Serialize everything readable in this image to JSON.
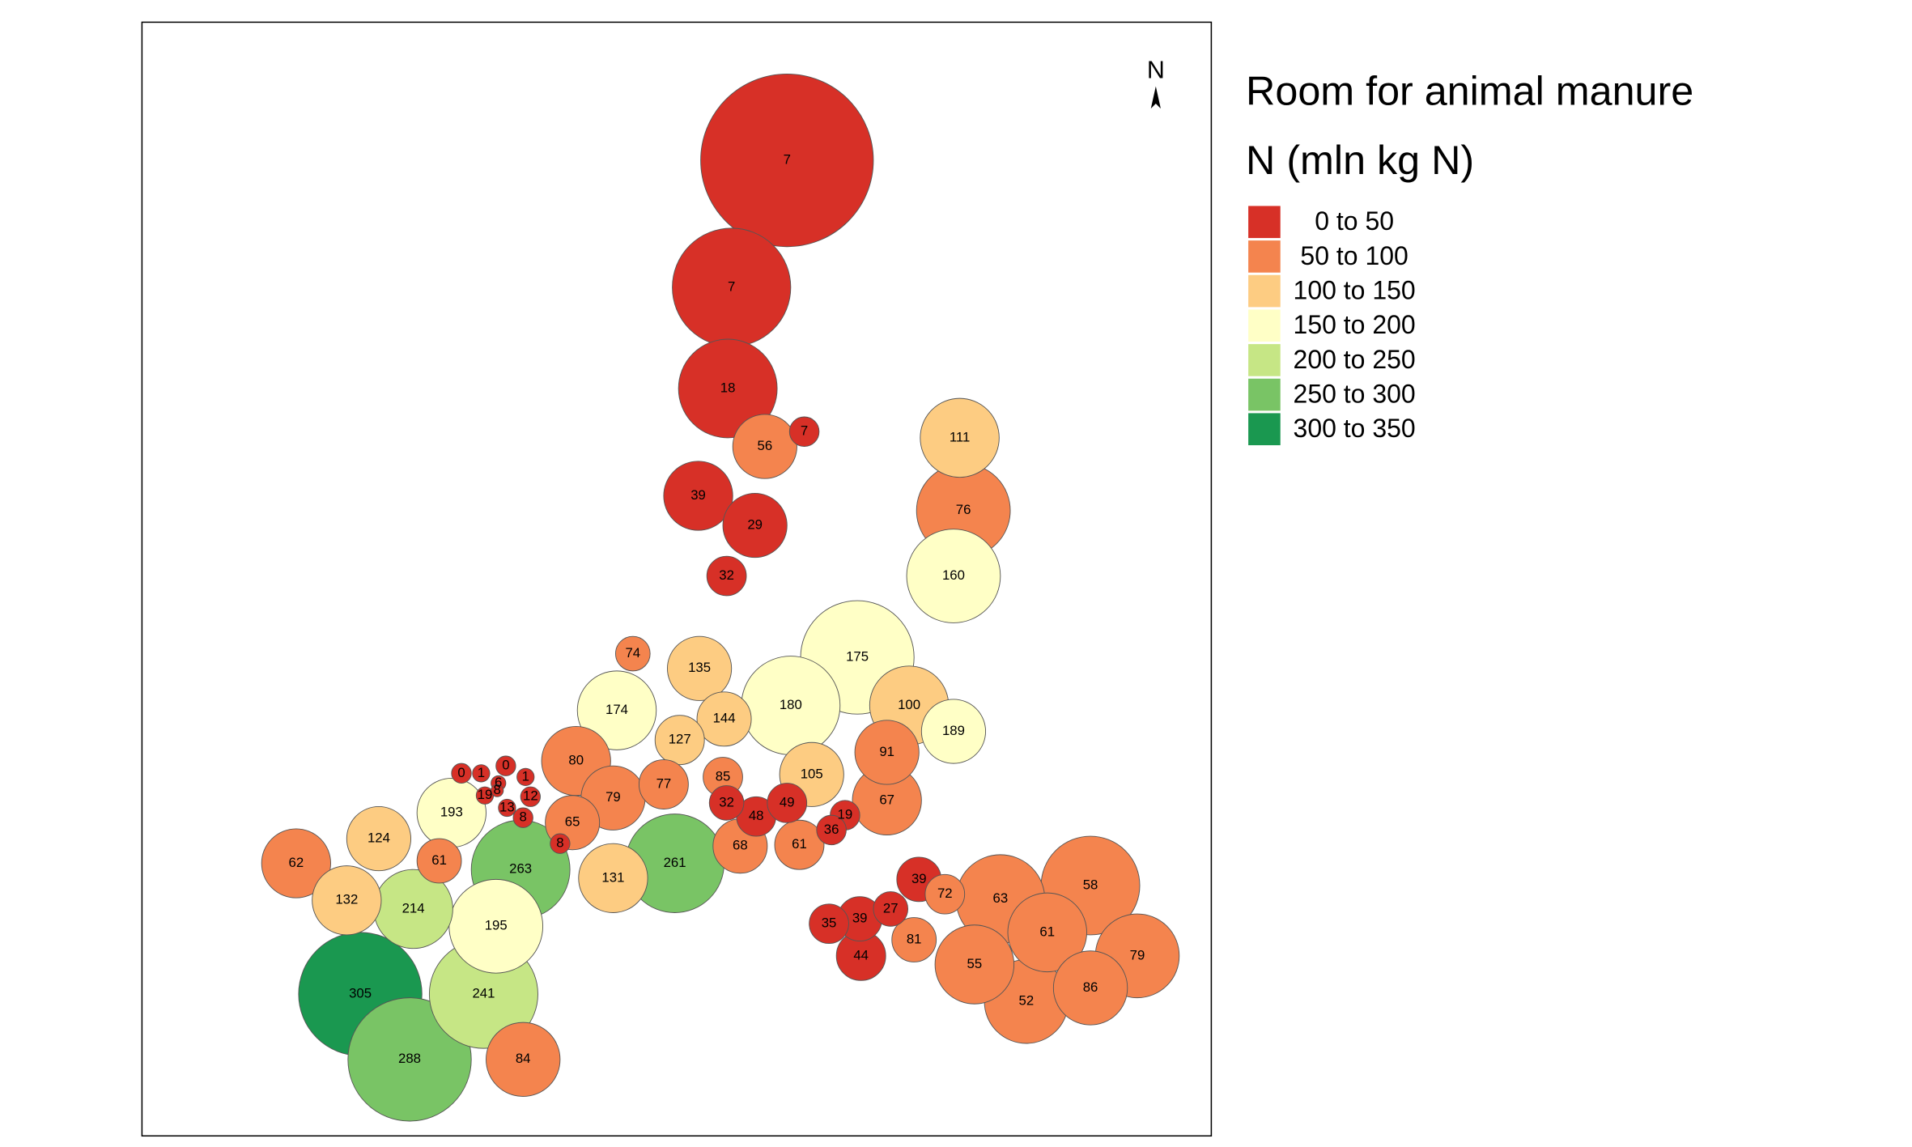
{
  "map": {
    "title_lines": [
      "Room for animal manure",
      "N (mln kg N)"
    ],
    "north_label": "N",
    "legend": {
      "classes": [
        {
          "label": "0 to  50",
          "min": 0,
          "max": 50,
          "color": "#d73027"
        },
        {
          "label": "50 to 100",
          "min": 50,
          "max": 100,
          "color": "#f4844e"
        },
        {
          "label": "100 to 150",
          "min": 100,
          "max": 150,
          "color": "#fdcc82"
        },
        {
          "label": "150 to 200",
          "min": 150,
          "max": 200,
          "color": "#ffffc6"
        },
        {
          "label": "200 to 250",
          "min": 200,
          "max": 250,
          "color": "#c6e685"
        },
        {
          "label": "250 to 300",
          "min": 250,
          "max": 300,
          "color": "#79c465"
        },
        {
          "label": "300 to 350",
          "min": 300,
          "max": 350,
          "color": "#1a9850"
        }
      ]
    },
    "regions": {
      "values": [
        7,
        7,
        18,
        56,
        7,
        39,
        29,
        32,
        111,
        76,
        160,
        175,
        180,
        100,
        189,
        91,
        105,
        67,
        74,
        135,
        174,
        144,
        127,
        80,
        79,
        77,
        85,
        65,
        8,
        131,
        261,
        0,
        1,
        0,
        1,
        6,
        19,
        8,
        12,
        13,
        8,
        32,
        48,
        49,
        19,
        68,
        61,
        36,
        193,
        124,
        61,
        263,
        62,
        132,
        214,
        195,
        305,
        241,
        288,
        84,
        39,
        72,
        35,
        39,
        27,
        81,
        44,
        63,
        58,
        61,
        79,
        55,
        52,
        86
      ]
    }
  }
}
